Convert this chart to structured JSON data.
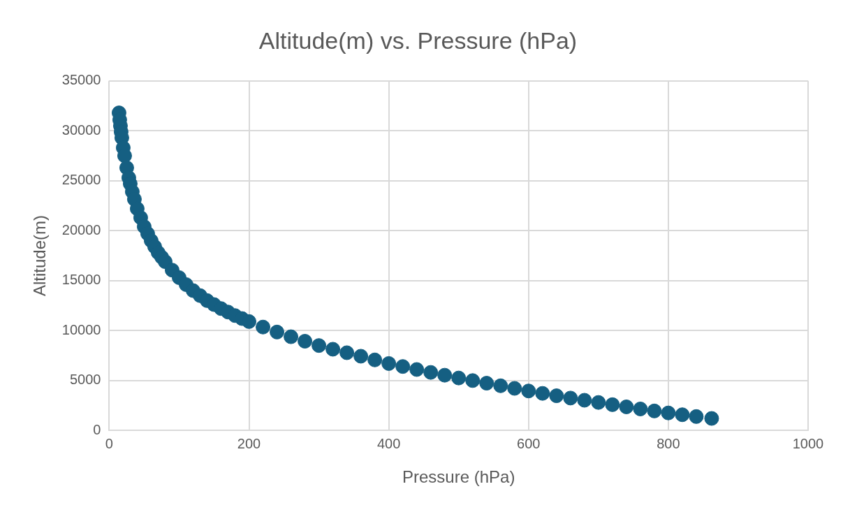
{
  "chart_data": {
    "type": "scatter",
    "title": "Altitude(m) vs. Pressure (hPa)",
    "xlabel": "Pressure (hPa)",
    "ylabel": "Altitude(m)",
    "x": [
      14,
      15,
      16,
      17,
      18,
      20,
      22,
      25,
      28,
      30,
      33,
      36,
      40,
      45,
      50,
      55,
      60,
      65,
      70,
      75,
      80,
      90,
      100,
      110,
      120,
      130,
      140,
      150,
      160,
      170,
      180,
      190,
      200,
      220,
      240,
      260,
      280,
      300,
      320,
      340,
      360,
      380,
      400,
      420,
      440,
      460,
      480,
      500,
      520,
      540,
      560,
      580,
      600,
      620,
      640,
      660,
      680,
      700,
      720,
      740,
      760,
      780,
      800,
      820,
      840,
      862
    ],
    "series": [
      {
        "color": "#155f82",
        "values": [
          31800,
          31100,
          30500,
          29900,
          29300,
          28300,
          27500,
          26300,
          25300,
          24700,
          23900,
          23150,
          22200,
          21300,
          20400,
          19700,
          19000,
          18400,
          17800,
          17350,
          16900,
          16050,
          15300,
          14600,
          14000,
          13500,
          13000,
          12600,
          12200,
          11850,
          11500,
          11200,
          10900,
          10350,
          9850,
          9380,
          8930,
          8500,
          8130,
          7780,
          7430,
          7060,
          6700,
          6400,
          6100,
          5810,
          5530,
          5250,
          4990,
          4730,
          4470,
          4210,
          3950,
          3710,
          3470,
          3240,
          3020,
          2800,
          2580,
          2360,
          2150,
          1950,
          1750,
          1570,
          1390,
          1200
        ]
      }
    ],
    "xlim": [
      0,
      1000
    ],
    "xticks": [
      0,
      200,
      400,
      600,
      800,
      1000
    ],
    "ylim": [
      0,
      35000
    ],
    "yticks": [
      0,
      5000,
      10000,
      15000,
      20000,
      25000,
      30000,
      35000
    ],
    "grid": true,
    "legend": false,
    "marker": "circle"
  }
}
